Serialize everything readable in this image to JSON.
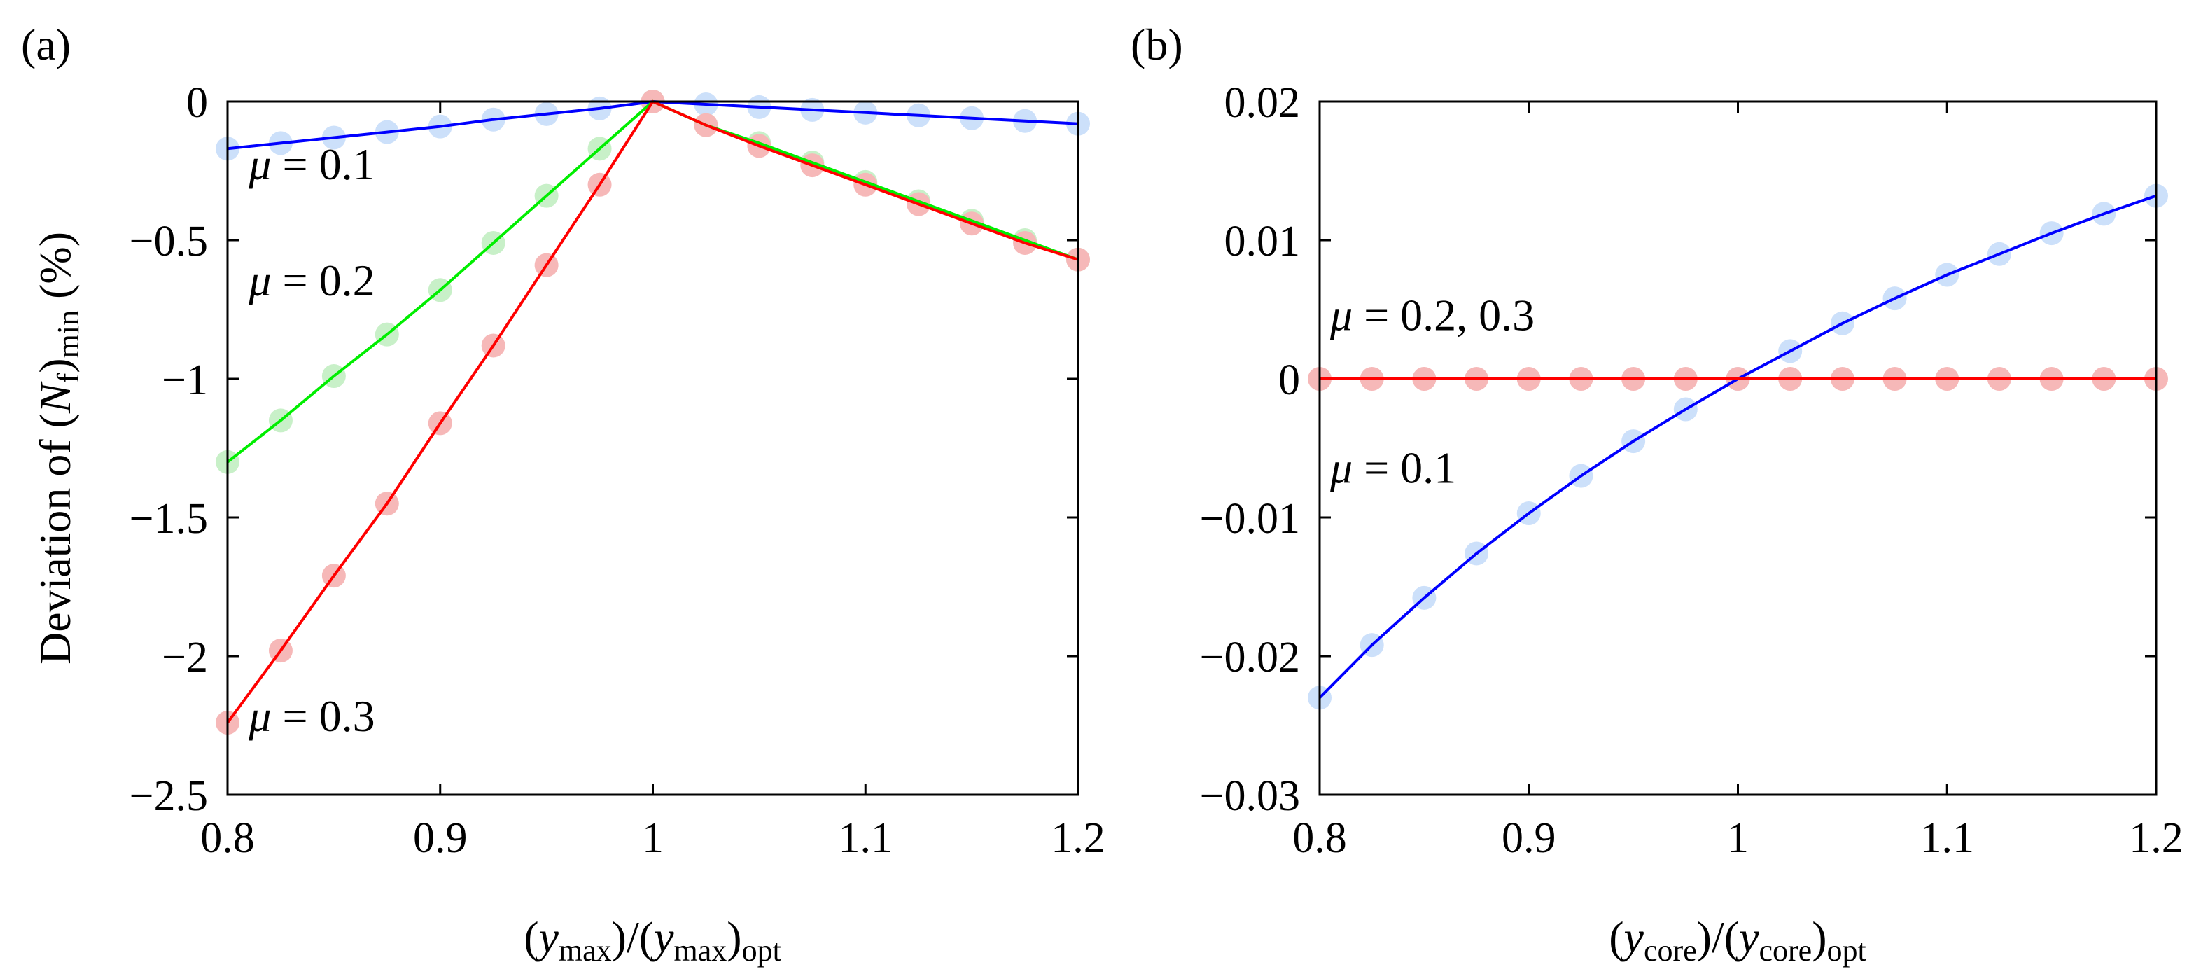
{
  "chart_data": [
    {
      "type": "line",
      "panel_label": "(a)",
      "x": [
        0.8,
        0.825,
        0.85,
        0.875,
        0.9,
        0.925,
        0.95,
        0.975,
        1.0,
        1.025,
        1.05,
        1.075,
        1.1,
        1.125,
        1.15,
        1.175,
        1.2
      ],
      "xlim": [
        0.8,
        1.2
      ],
      "ylim": [
        -2.5,
        0
      ],
      "xticks": [
        0.8,
        0.9,
        1.0,
        1.1,
        1.2
      ],
      "xtick_labels": [
        "0.8",
        "0.9",
        "1",
        "1.1",
        "1.2"
      ],
      "yticks": [
        0,
        -0.5,
        -1,
        -1.5,
        -2,
        -2.5
      ],
      "ytick_labels": [
        "0",
        "−0.5",
        "−1",
        "−1.5",
        "−2",
        "−2.5"
      ],
      "xlabel": {
        "open": "(",
        "var": "y",
        "sub": "max",
        "mid": ")/(",
        "var2": "y",
        "sub2": "max",
        "close": ")",
        "sub3": "opt"
      },
      "ylabel": {
        "pre": "Deviation of (",
        "var": "N",
        "sub": "f",
        "mid": ")",
        "sub2": "min",
        "post": " (%)"
      },
      "series": [
        {
          "name": "μ = 0.1",
          "mu_symbol": "μ",
          "mu_text": " = 0.1",
          "line_color": "#0000ff",
          "marker_color": "#cce0fa",
          "values": [
            -0.17,
            -0.15,
            -0.13,
            -0.11,
            -0.09,
            -0.065,
            -0.045,
            -0.025,
            0.0,
            -0.01,
            -0.02,
            -0.03,
            -0.04,
            -0.05,
            -0.06,
            -0.07,
            -0.08
          ]
        },
        {
          "name": "μ = 0.2",
          "mu_symbol": "μ",
          "mu_text": " = 0.2",
          "line_color": "#00ee00",
          "marker_color": "#c8f0c8",
          "values": [
            -1.3,
            -1.15,
            -0.99,
            -0.84,
            -0.68,
            -0.51,
            -0.34,
            -0.17,
            0.0,
            -0.085,
            -0.15,
            -0.22,
            -0.29,
            -0.36,
            -0.43,
            -0.5,
            -0.57
          ]
        },
        {
          "name": "μ = 0.3",
          "mu_symbol": "μ",
          "mu_text": " = 0.3",
          "line_color": "#ff0000",
          "marker_color": "#f6b8b8",
          "values": [
            -2.24,
            -1.98,
            -1.71,
            -1.45,
            -1.16,
            -0.88,
            -0.59,
            -0.3,
            0.0,
            -0.085,
            -0.16,
            -0.23,
            -0.3,
            -0.37,
            -0.44,
            -0.51,
            -0.57
          ]
        }
      ],
      "annotations": [
        {
          "symbol": "μ",
          "text": " = 0.1",
          "x": 0.81,
          "y": -0.28
        },
        {
          "symbol": "μ",
          "text": " = 0.2",
          "x": 0.81,
          "y": -0.7
        },
        {
          "symbol": "μ",
          "text": " = 0.3",
          "x": 0.81,
          "y": -2.27
        }
      ]
    },
    {
      "type": "line",
      "panel_label": "(b)",
      "x": [
        0.8,
        0.825,
        0.85,
        0.875,
        0.9,
        0.925,
        0.95,
        0.975,
        1.0,
        1.025,
        1.05,
        1.075,
        1.1,
        1.125,
        1.15,
        1.175,
        1.2
      ],
      "xlim": [
        0.8,
        1.2
      ],
      "ylim": [
        -0.03,
        0.02
      ],
      "xticks": [
        0.8,
        0.9,
        1.0,
        1.1,
        1.2
      ],
      "xtick_labels": [
        "0.8",
        "0.9",
        "1",
        "1.1",
        "1.2"
      ],
      "yticks": [
        0.02,
        0.01,
        0,
        -0.01,
        -0.02,
        -0.03
      ],
      "ytick_labels": [
        "0.02",
        "0.01",
        "0",
        "−0.01",
        "−0.02",
        "−0.03"
      ],
      "xlabel": {
        "open": "(",
        "var": "y",
        "sub": "core",
        "mid": ")/(",
        "var2": "y",
        "sub2": "core",
        "close": ")",
        "sub3": "opt"
      },
      "series": [
        {
          "name": "μ = 0.1",
          "mu_symbol": "μ",
          "mu_text": " = 0.1",
          "line_color": "#0000ff",
          "marker_color": "#cce0fa",
          "values": [
            -0.023,
            -0.0192,
            -0.0158,
            -0.0126,
            -0.0097,
            -0.007,
            -0.0045,
            -0.0022,
            0.0,
            0.002,
            0.004,
            0.0058,
            0.0075,
            0.009,
            0.0105,
            0.0119,
            0.0132
          ]
        },
        {
          "name": "μ = 0.2, 0.3",
          "mu_symbol": "μ",
          "mu_text": " = 0.2, 0.3",
          "line_color": "#ff0000",
          "marker_color": "#f6b8b8",
          "values": [
            0,
            0,
            0,
            0,
            0,
            0,
            0,
            0,
            0,
            0,
            0,
            0,
            0,
            0,
            0,
            0,
            0
          ]
        }
      ],
      "annotations": [
        {
          "symbol": "μ",
          "text": " = 0.2, 0.3",
          "x": 0.805,
          "y": 0.0035
        },
        {
          "symbol": "μ",
          "text": " = 0.1",
          "x": 0.805,
          "y": -0.0075
        }
      ]
    }
  ]
}
